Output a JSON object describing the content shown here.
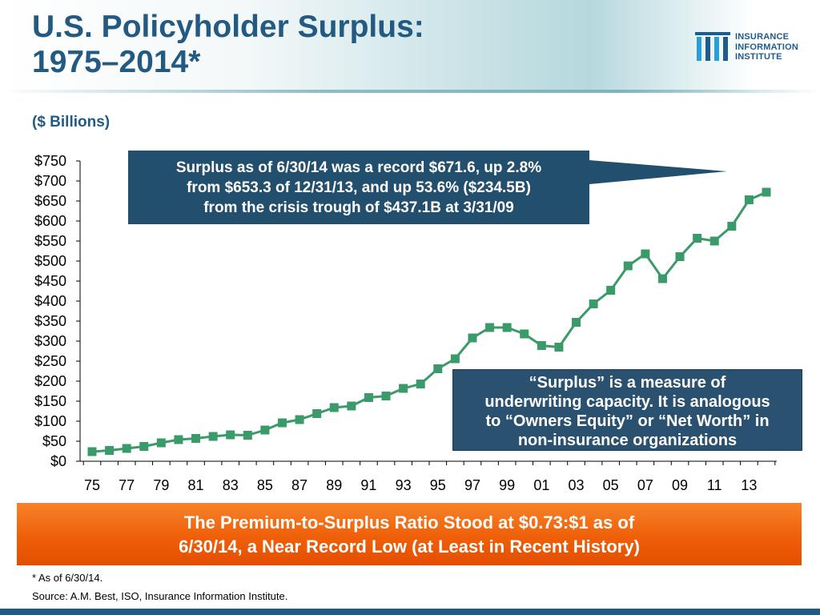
{
  "header": {
    "title_line1": "U.S. Policyholder Surplus:",
    "title_line2": "1975–2014*",
    "subtitle": "($ Billions)"
  },
  "logo": {
    "line1": "INSURANCE",
    "line2": "INFORMATION",
    "line3": "INSTITUTE",
    "icon": "columns-logo-icon"
  },
  "callouts": {
    "record": {
      "line1": "Surplus as of 6/30/14 was a record $671.6, up 2.8%",
      "line2": "from $653.3 of 12/31/13, and up 53.6% ($234.5B)",
      "line3": "from the crisis trough of $437.1B at 3/31/09"
    },
    "definition": {
      "line1": "“Surplus” is a measure of",
      "line2": "underwriting capacity.  It is analogous",
      "line3": "to “Owners Equity” or “Net Worth” in",
      "line4": "non-insurance organizations"
    }
  },
  "banner": {
    "line1": "The Premium-to-Surplus Ratio Stood at $0.73:$1 as of",
    "line2": "6/30/14, a Near Record Low (at Least in Recent History)"
  },
  "footer": {
    "footnote": "* As of 6/30/14.",
    "source": "Source: A.M. Best, ISO, Insurance Information Institute."
  },
  "colors": {
    "title": "#235a82",
    "series": "#3a9a6a",
    "callout": "#234f6e",
    "banner": "#ef5f08"
  },
  "chart_data": {
    "type": "line",
    "title": "U.S. Policyholder Surplus: 1975–2014*",
    "ylabel": "($ Billions)",
    "xlabel": "",
    "ylim": [
      0,
      750
    ],
    "y_ticks": [
      0,
      50,
      100,
      150,
      200,
      250,
      300,
      350,
      400,
      450,
      500,
      550,
      600,
      650,
      700,
      750
    ],
    "y_tick_labels": [
      "$0",
      "$50",
      "$100",
      "$150",
      "$200",
      "$250",
      "$300",
      "$350",
      "$400",
      "$450",
      "$500",
      "$550",
      "$600",
      "$650",
      "$700",
      "$750"
    ],
    "x_tick_labels": [
      "75",
      "77",
      "79",
      "81",
      "83",
      "85",
      "87",
      "89",
      "91",
      "93",
      "95",
      "97",
      "99",
      "01",
      "03",
      "05",
      "07",
      "09",
      "11",
      "13"
    ],
    "x": [
      1975,
      1976,
      1977,
      1978,
      1979,
      1980,
      1981,
      1982,
      1983,
      1984,
      1985,
      1986,
      1987,
      1988,
      1989,
      1990,
      1991,
      1992,
      1993,
      1994,
      1995,
      1996,
      1997,
      1998,
      1999,
      2000,
      2001,
      2002,
      2003,
      2004,
      2005,
      2006,
      2007,
      2008,
      2009,
      2010,
      2011,
      2012,
      2013,
      2014
    ],
    "series": [
      {
        "values": [
          24,
          27,
          32,
          37,
          46,
          54,
          57,
          62,
          66,
          65,
          78,
          96,
          104,
          119,
          134,
          138,
          159,
          163,
          182,
          193,
          231,
          256,
          308,
          334,
          334,
          318,
          289,
          285,
          347,
          393,
          427,
          488,
          518,
          456,
          511,
          557,
          550,
          587,
          653,
          672
        ]
      }
    ],
    "grid": false,
    "legend": "none"
  }
}
